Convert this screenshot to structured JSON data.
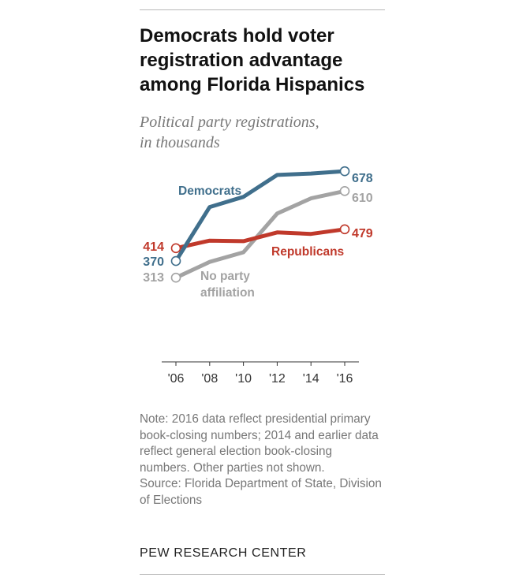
{
  "header": {
    "title": "Democrats hold voter registration advantage among Florida Hispanics",
    "subtitle_line1": "Political party registrations,",
    "subtitle_line2": "in thousands"
  },
  "chart_data": {
    "type": "line",
    "title": "Democrats hold voter registration advantage among Florida Hispanics",
    "subtitle": "Political party registrations, in thousands",
    "x": [
      2006,
      2008,
      2010,
      2012,
      2014,
      2016
    ],
    "x_tick_labels": [
      "'06",
      "'08",
      "'10",
      "'12",
      "'14",
      "'16"
    ],
    "ylim": [
      100,
      750
    ],
    "grid": false,
    "legend": "inline labels",
    "series": [
      {
        "name": "Democrats",
        "label_lines": [
          "Democrats"
        ],
        "color": "#406f8c",
        "values": [
          370,
          555,
          590,
          665,
          670,
          678
        ],
        "start_label": "370",
        "end_label": "678"
      },
      {
        "name": "No party affiliation",
        "label_lines": [
          "No party",
          "affiliation"
        ],
        "color": "#a3a3a3",
        "values": [
          313,
          367,
          400,
          533,
          585,
          610
        ],
        "start_label": "313",
        "end_label": "610"
      },
      {
        "name": "Republicans",
        "label_lines": [
          "Republicans"
        ],
        "color": "#c0392b",
        "values": [
          414,
          440,
          438,
          468,
          463,
          479
        ],
        "start_label": "414",
        "end_label": "479"
      }
    ]
  },
  "footnote": {
    "note": "Note: 2016 data reflect presidential primary book-closing numbers; 2014 and earlier data reflect general election book-closing numbers. Other parties not shown.",
    "source": "Source: Florida Department of State, Division of Elections"
  },
  "brand": "PEW RESEARCH CENTER"
}
